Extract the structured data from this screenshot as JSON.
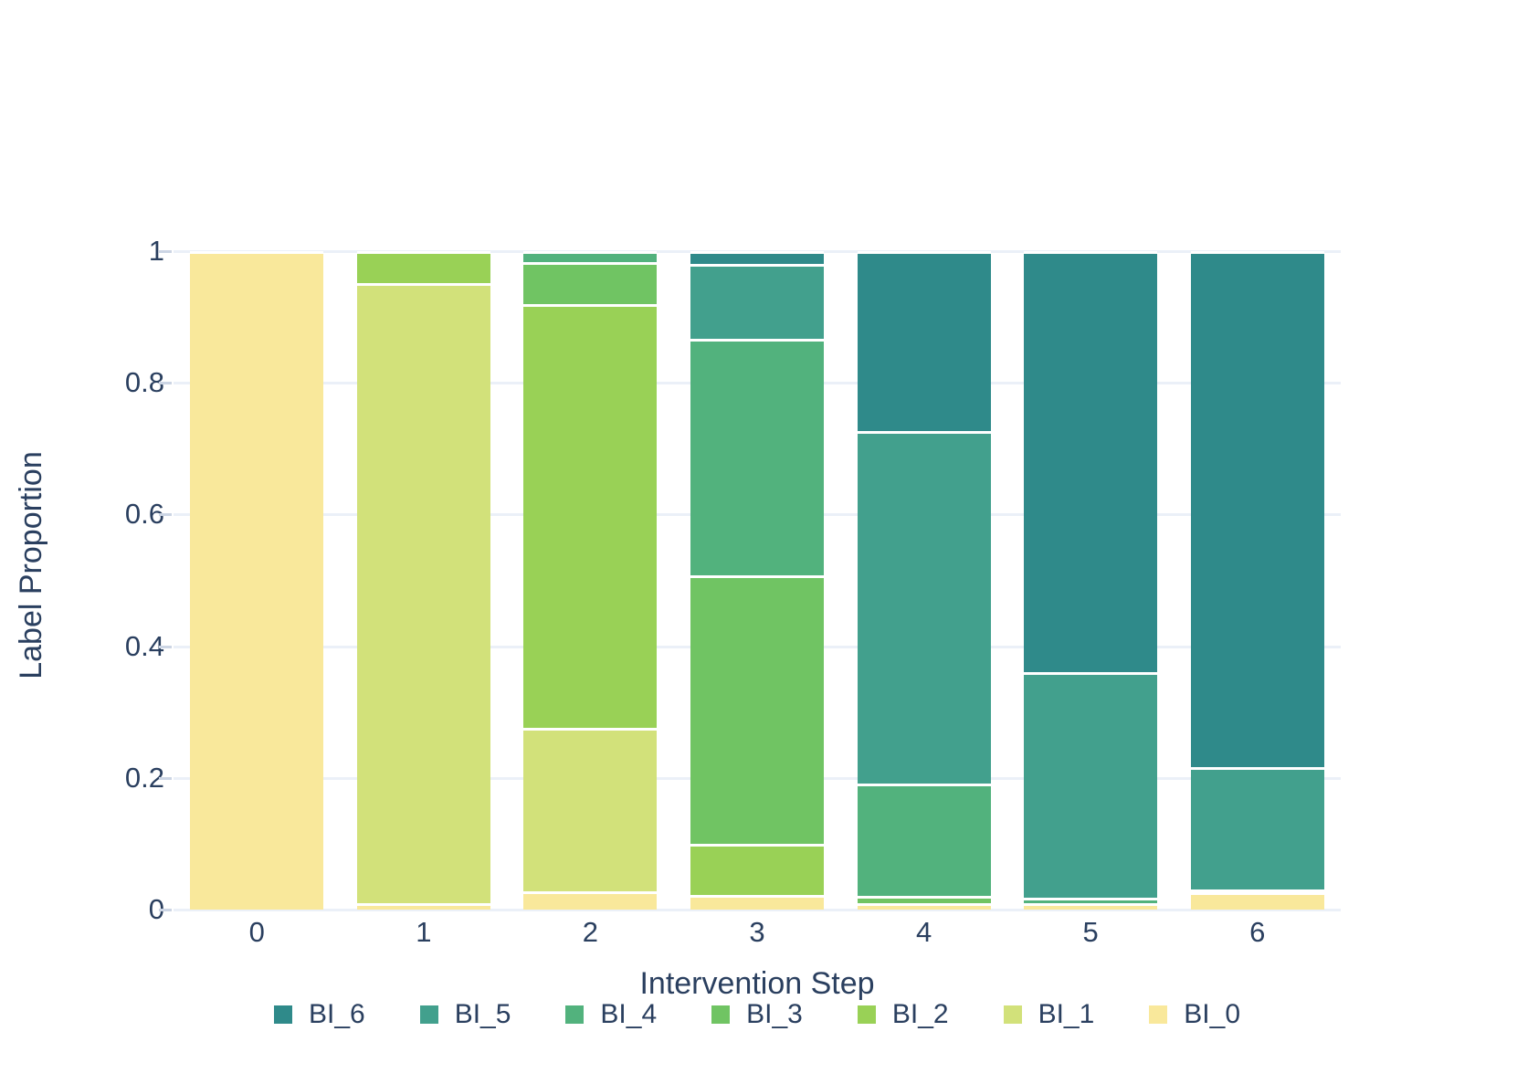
{
  "chart_data": {
    "type": "bar",
    "stacked": true,
    "title": "",
    "xlabel": "Intervention Step",
    "ylabel": "Label Proportion",
    "categories": [
      "0",
      "1",
      "2",
      "3",
      "4",
      "5",
      "6"
    ],
    "y_ticks": [
      {
        "value": 0,
        "label": "0"
      },
      {
        "value": 0.2,
        "label": "0.2"
      },
      {
        "value": 0.4,
        "label": "0.4"
      },
      {
        "value": 0.6,
        "label": "0.6"
      },
      {
        "value": 0.8,
        "label": "0.8"
      },
      {
        "value": 1,
        "label": "1"
      }
    ],
    "ylim": [
      0,
      1
    ],
    "grid": true,
    "legend_position": "bottom-center",
    "legend_order": [
      "BI_6",
      "BI_5",
      "BI_4",
      "BI_3",
      "BI_2",
      "BI_1",
      "BI_0"
    ],
    "series": [
      {
        "name": "BI_0",
        "color": "#f9e89b",
        "values": [
          1.0,
          0.01,
          0.028,
          0.022,
          0.01,
          0.01,
          0.026
        ]
      },
      {
        "name": "BI_1",
        "color": "#d2e17a",
        "values": [
          0,
          0.941,
          0.248,
          0,
          0,
          0,
          0
        ]
      },
      {
        "name": "BI_2",
        "color": "#99d156",
        "values": [
          0,
          0.049,
          0.643,
          0.078,
          0,
          0,
          0
        ]
      },
      {
        "name": "BI_3",
        "color": "#70c463",
        "values": [
          0,
          0,
          0.064,
          0.408,
          0.011,
          0,
          0
        ]
      },
      {
        "name": "BI_4",
        "color": "#52b27d",
        "values": [
          0,
          0,
          0.017,
          0.359,
          0.171,
          0.008,
          0.004
        ]
      },
      {
        "name": "BI_5",
        "color": "#42a08d",
        "values": [
          0,
          0,
          0,
          0.113,
          0.535,
          0.342,
          0.186
        ]
      },
      {
        "name": "BI_6",
        "color": "#2f8a8a",
        "values": [
          0,
          0,
          0,
          0.02,
          0.273,
          0.64,
          0.784
        ]
      }
    ],
    "style": {
      "text_color": "#2a3f5f",
      "grid_color": "#ebf0f8",
      "tick_color": "#ccd5e4",
      "segment_separator_color": "#ffffff",
      "background_color": "#ffffff"
    }
  }
}
